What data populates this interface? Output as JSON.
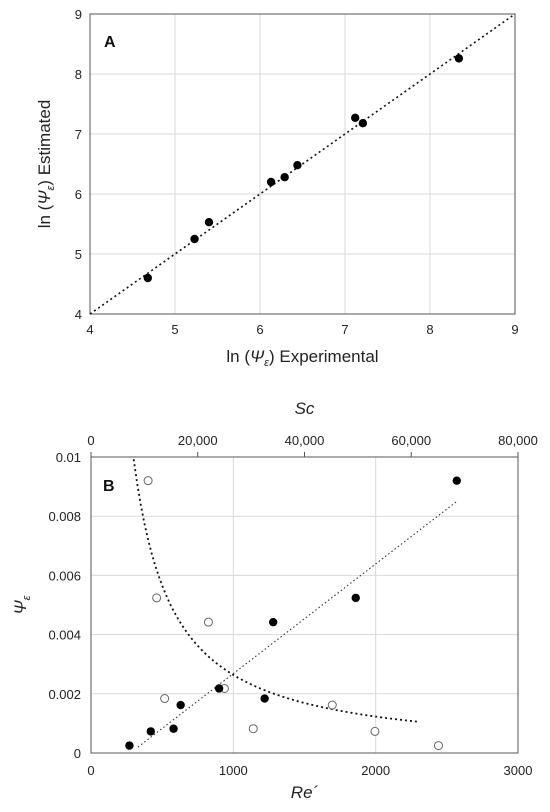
{
  "chart_data": [
    {
      "type": "scatter",
      "panel_label": "A",
      "xlabel": "ln (Ψε) Experimental",
      "ylabel": "ln (Ψε) Estimated",
      "xlim": [
        4,
        9
      ],
      "ylim": [
        4,
        9
      ],
      "x_ticks": [
        "4",
        "5",
        "6",
        "7",
        "8",
        "9"
      ],
      "y_ticks": [
        "4",
        "5",
        "6",
        "7",
        "8",
        "9"
      ],
      "grid": true,
      "series": [
        {
          "marker": "filled-circle",
          "points": [
            {
              "x": 4.68,
              "y": 4.6
            },
            {
              "x": 5.23,
              "y": 5.25
            },
            {
              "x": 5.4,
              "y": 5.53
            },
            {
              "x": 6.13,
              "y": 6.2
            },
            {
              "x": 6.29,
              "y": 6.28
            },
            {
              "x": 6.44,
              "y": 6.48
            },
            {
              "x": 7.12,
              "y": 7.27
            },
            {
              "x": 7.21,
              "y": 7.18
            },
            {
              "x": 8.34,
              "y": 8.26
            }
          ]
        },
        {
          "line": "dotted",
          "points": [
            {
              "x": 4,
              "y": 4
            },
            {
              "x": 9,
              "y": 9
            }
          ]
        }
      ]
    },
    {
      "type": "scatter",
      "panel_label": "B",
      "xlabel": "Re´",
      "x2label": "Sc",
      "ylabel": "Ψε",
      "xlim": [
        0,
        3000
      ],
      "x2lim": [
        0,
        80000
      ],
      "ylim": [
        0,
        0.01
      ],
      "x_ticks": [
        "0",
        "1000",
        "2000",
        "3000"
      ],
      "x2_ticks": [
        "0",
        "20,000",
        "40,000",
        "60,000",
        "80,000"
      ],
      "y_ticks": [
        "0",
        "0.002",
        "0.004",
        "0.006",
        "0.008",
        "0.01"
      ],
      "grid": true,
      "series": [
        {
          "marker": "filled-circle",
          "axis": "Re´",
          "points": [
            {
              "x": 270,
              "y": 0.00025
            },
            {
              "x": 420,
              "y": 0.00073
            },
            {
              "x": 580,
              "y": 0.00082
            },
            {
              "x": 630,
              "y": 0.00162
            },
            {
              "x": 900,
              "y": 0.00218
            },
            {
              "x": 1220,
              "y": 0.00184
            },
            {
              "x": 1280,
              "y": 0.00442
            },
            {
              "x": 1860,
              "y": 0.00524
            },
            {
              "x": 2570,
              "y": 0.0092
            }
          ]
        },
        {
          "marker": "open-circle",
          "axis": "Sc",
          "points": [
            {
              "x": 10700,
              "y": 0.0092
            },
            {
              "x": 12300,
              "y": 0.00524
            },
            {
              "x": 13800,
              "y": 0.00184
            },
            {
              "x": 22000,
              "y": 0.00442
            },
            {
              "x": 25000,
              "y": 0.00218
            },
            {
              "x": 30400,
              "y": 0.00082
            },
            {
              "x": 45200,
              "y": 0.00162
            },
            {
              "x": 53200,
              "y": 0.00073
            },
            {
              "x": 65100,
              "y": 0.00025
            }
          ]
        },
        {
          "line": "dotted-linear",
          "axis": "Re´",
          "points": [
            {
              "x": 330,
              "y": 0.0002
            },
            {
              "x": 2570,
              "y": 0.0085
            }
          ]
        },
        {
          "line": "dotted-power",
          "axis": "Sc",
          "coef": 195,
          "exponent": -1.1,
          "x_range": [
            8000,
            61500
          ]
        }
      ]
    }
  ]
}
